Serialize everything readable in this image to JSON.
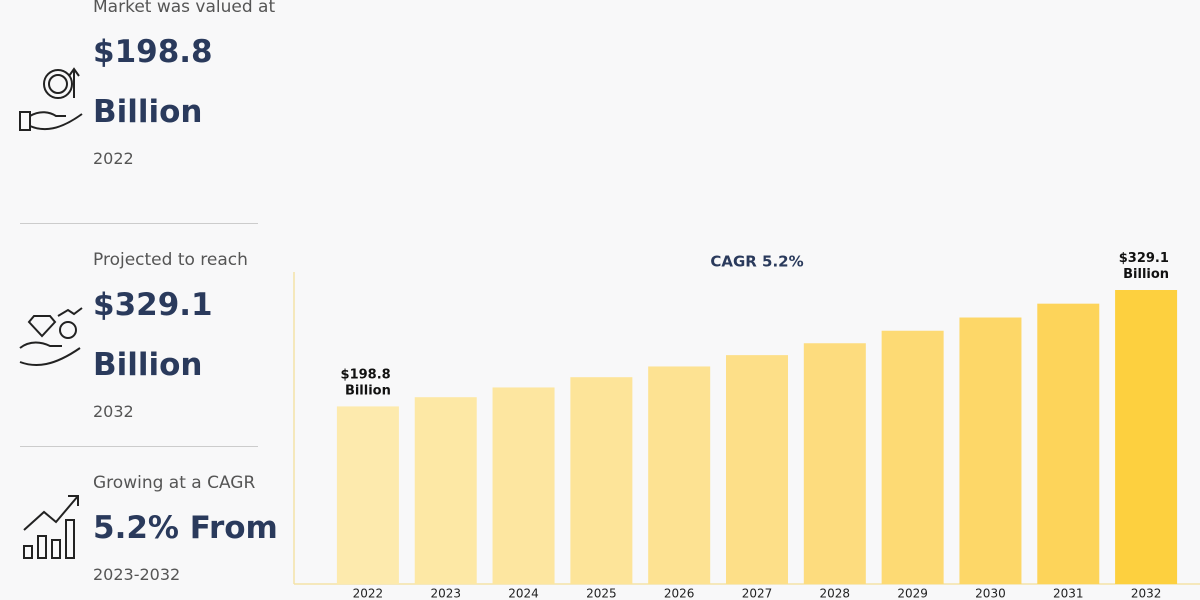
{
  "panel": [
    {
      "caption": "Market was valued at",
      "value": "$198.8 Billion",
      "note": "2022"
    },
    {
      "caption": "Projected to reach",
      "value": "$329.1 Billion",
      "note": "2032"
    },
    {
      "caption": "Growing at a CAGR",
      "value": "5.2% From",
      "note": "2023-2032"
    }
  ],
  "chart_data": {
    "type": "bar",
    "title": "CAGR 5.2%",
    "categories": [
      "2022",
      "2023",
      "2024",
      "2025",
      "2026",
      "2027",
      "2028",
      "2029",
      "2030",
      "2031",
      "2032"
    ],
    "values": [
      198.8,
      209.1,
      220.0,
      231.5,
      243.5,
      256.2,
      269.5,
      283.5,
      298.3,
      313.8,
      329.1
    ],
    "value_labels": [
      "$198.8 Billion",
      null,
      null,
      null,
      null,
      null,
      null,
      null,
      null,
      null,
      "$329.1 Billion"
    ],
    "colors": [
      "#fdeaad",
      "#fde8a5",
      "#fde6a0",
      "#fde499",
      "#fde292",
      "#fddf88",
      "#fddc7e",
      "#fdda74",
      "#fdd768",
      "#fdd45a",
      "#fdd03f"
    ]
  }
}
